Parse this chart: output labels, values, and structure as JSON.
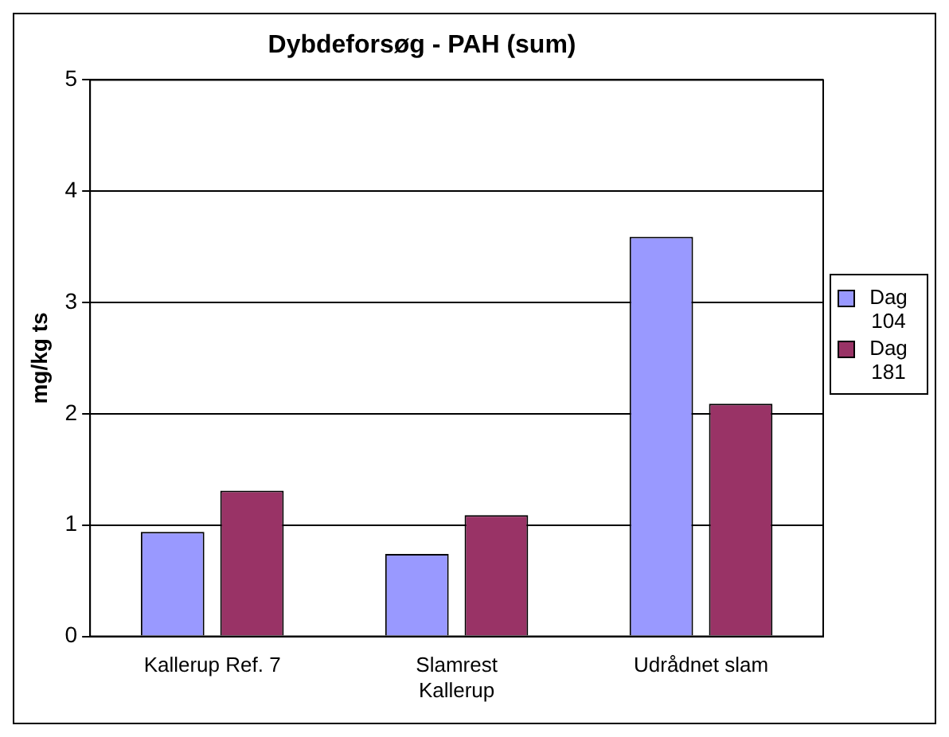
{
  "chart_data": {
    "type": "bar",
    "title": "Dybdeforsøg - PAH (sum)",
    "ylabel": "mg/kg ts",
    "categories": [
      "Kallerup Ref. 7",
      "Slamrest Kallerup",
      "Udrådnet slam"
    ],
    "series": [
      {
        "name": "Dag 104",
        "color": "#9999ff",
        "values": [
          0.94,
          0.74,
          3.59
        ]
      },
      {
        "name": "Dag 181",
        "color": "#993366",
        "values": [
          1.31,
          1.09,
          2.09
        ]
      }
    ],
    "ylim": [
      0,
      5
    ],
    "yticks": [
      0,
      1,
      2,
      3,
      4,
      5
    ],
    "grid": "y",
    "legend": "right"
  }
}
